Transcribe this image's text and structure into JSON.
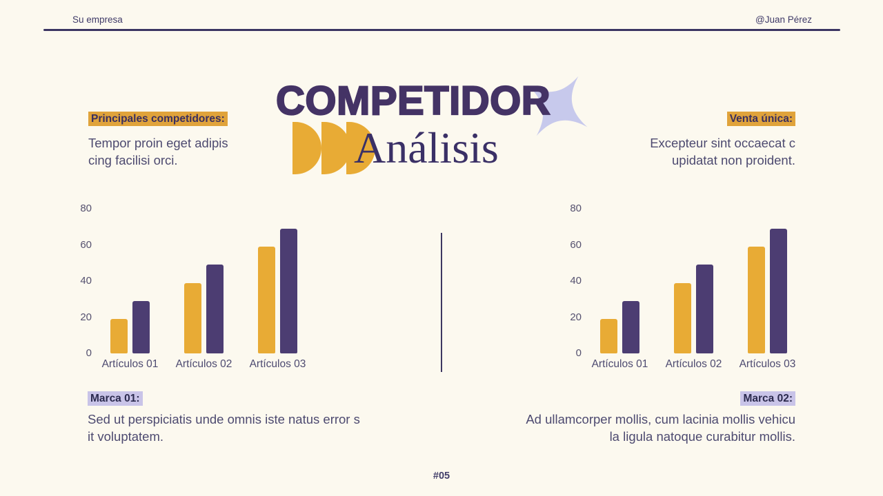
{
  "header": {
    "company": "Su empresa",
    "author": "@Juan Pérez"
  },
  "title": {
    "line1": "COMPETIDOR",
    "line2": "Análisis"
  },
  "colors": {
    "background": "#FCF9EF",
    "title_purple": "#443365",
    "body_text": "#4D4A70",
    "accent_yellow": "#E8AB35",
    "accent_purple": "#4C3D72",
    "highlight_yellow": "#E0A33B",
    "highlight_lavender": "#C9C4E8",
    "sparkle_lavender": "#C7C9EC",
    "rule_purple": "#3B3562"
  },
  "top_left": {
    "label": "Principales competidores:",
    "text": "Tempor proin eget adipis\ncing facilisi orci."
  },
  "top_right": {
    "label": "Venta única:",
    "text": "Excepteur sint occaecat c\nupidatat non proident."
  },
  "bottom_left": {
    "label": "Marca 01:",
    "text": "Sed ut perspiciatis unde omnis iste natus error s\nit voluptatem."
  },
  "bottom_right": {
    "label": "Marca 02:",
    "text": "Ad ullamcorper mollis, cum lacinia mollis vehicu\nla ligula natoque curabitur mollis."
  },
  "footer": {
    "page_number": "#05"
  },
  "chart_data": [
    {
      "id": "left-chart",
      "type": "bar",
      "title": "",
      "xlabel": "",
      "ylabel": "",
      "categories": [
        "Artículos 01",
        "Artículos 02",
        "Artículos 03"
      ],
      "series": [
        {
          "name": "serie-amarilla",
          "color": "#E8AB35",
          "values": [
            19,
            39,
            59
          ]
        },
        {
          "name": "serie-morada",
          "color": "#4C3D72",
          "values": [
            29,
            49,
            69
          ]
        }
      ],
      "yticks": [
        0,
        20,
        40,
        60,
        80
      ],
      "ylim": [
        0,
        80
      ],
      "grid": false,
      "legend": "none"
    },
    {
      "id": "right-chart",
      "type": "bar",
      "title": "",
      "xlabel": "",
      "ylabel": "",
      "categories": [
        "Artículos 01",
        "Artículos 02",
        "Artículos 03"
      ],
      "series": [
        {
          "name": "serie-amarilla",
          "color": "#E8AB35",
          "values": [
            19,
            39,
            59
          ]
        },
        {
          "name": "serie-morada",
          "color": "#4C3D72",
          "values": [
            29,
            49,
            69
          ]
        }
      ],
      "yticks": [
        0,
        20,
        40,
        60,
        80
      ],
      "ylim": [
        0,
        80
      ],
      "grid": false,
      "legend": "none"
    }
  ]
}
